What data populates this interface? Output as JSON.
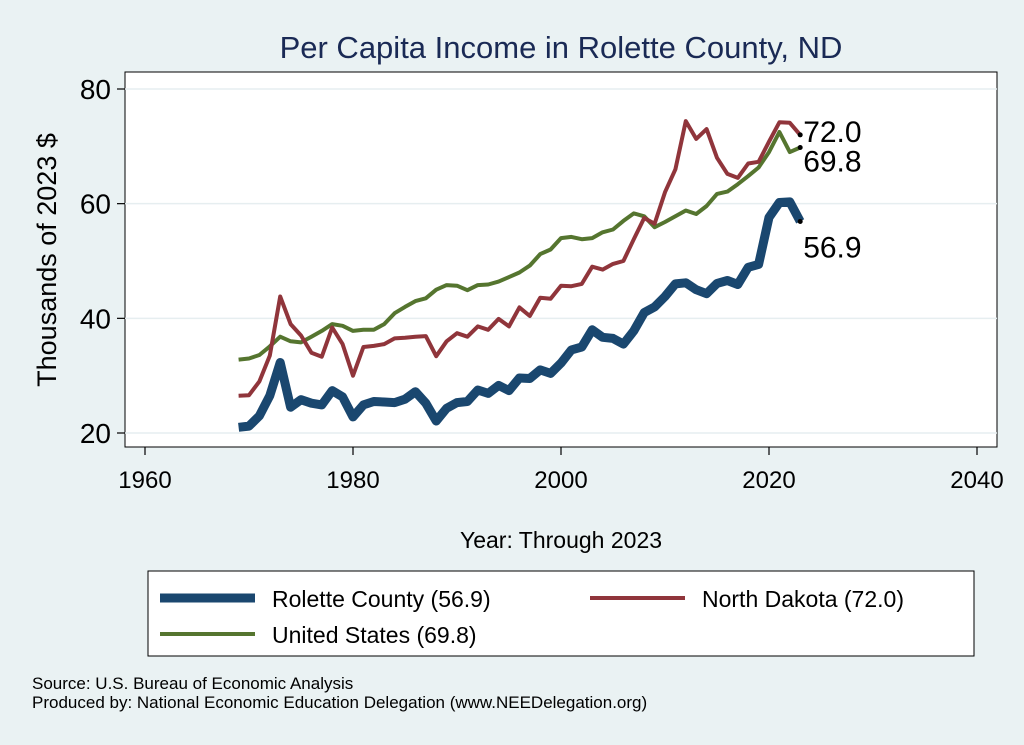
{
  "chart_data": {
    "type": "line",
    "title": "Per Capita Income in Rolette County, ND",
    "xlabel": "Year: Through 2023",
    "ylabel": "Thousands of 2023 $",
    "xlim": [
      1960,
      2040
    ],
    "ylim": [
      20,
      80
    ],
    "xticks": [
      1960,
      1980,
      2000,
      2020,
      2040
    ],
    "yticks": [
      20,
      40,
      60,
      80
    ],
    "grid": true,
    "legend_position": "bottom",
    "x": [
      1969,
      1970,
      1971,
      1972,
      1973,
      1974,
      1975,
      1976,
      1977,
      1978,
      1979,
      1980,
      1981,
      1982,
      1983,
      1984,
      1985,
      1986,
      1987,
      1988,
      1989,
      1990,
      1991,
      1992,
      1993,
      1994,
      1995,
      1996,
      1997,
      1998,
      1999,
      2000,
      2001,
      2002,
      2003,
      2004,
      2005,
      2006,
      2007,
      2008,
      2009,
      2010,
      2011,
      2012,
      2013,
      2014,
      2015,
      2016,
      2017,
      2018,
      2019,
      2020,
      2021,
      2022,
      2023
    ],
    "series": [
      {
        "name": "Rolette County",
        "legend_label": "Rolette County (56.9)",
        "end_label": "56.9",
        "color": "#1a476f",
        "values": [
          21.0,
          21.2,
          23.0,
          26.5,
          32.3,
          24.5,
          25.8,
          25.2,
          24.9,
          27.4,
          26.3,
          22.8,
          24.9,
          25.5,
          25.4,
          25.3,
          25.9,
          27.2,
          25.2,
          22.1,
          24.3,
          25.3,
          25.5,
          27.5,
          26.9,
          28.3,
          27.4,
          29.6,
          29.5,
          31.0,
          30.4,
          32.2,
          34.5,
          35.0,
          38.0,
          36.7,
          36.5,
          35.5,
          37.8,
          41.0,
          42.0,
          43.8,
          46.0,
          46.2,
          45.0,
          44.3,
          46.1,
          46.6,
          45.9,
          48.9,
          49.4,
          57.6,
          60.2,
          60.3,
          56.9
        ]
      },
      {
        "name": "North Dakota",
        "legend_label": "North Dakota (72.0)",
        "end_label": "72.0",
        "color": "#90353b",
        "values": [
          26.5,
          26.6,
          29.0,
          33.5,
          43.8,
          39.0,
          37.0,
          34.0,
          33.3,
          38.4,
          35.5,
          30.0,
          35.0,
          35.2,
          35.5,
          36.5,
          36.6,
          36.8,
          36.9,
          33.4,
          36.0,
          37.4,
          36.8,
          38.6,
          38.0,
          39.9,
          38.6,
          41.9,
          40.4,
          43.6,
          43.4,
          45.7,
          45.6,
          46.0,
          49.0,
          48.5,
          49.5,
          50.0,
          53.8,
          57.5,
          56.5,
          62.0,
          66.0,
          74.4,
          71.3,
          73.0,
          68.0,
          65.2,
          64.5,
          67.0,
          67.3,
          70.8,
          74.2,
          74.1,
          72.0
        ]
      },
      {
        "name": "United States",
        "legend_label": "United States (69.8)",
        "end_label": "69.8",
        "color": "#55752f",
        "values": [
          32.8,
          33.0,
          33.6,
          35.1,
          36.8,
          36.0,
          35.8,
          36.8,
          37.8,
          39.0,
          38.7,
          37.8,
          38.0,
          38.0,
          39.0,
          40.9,
          42.0,
          43.0,
          43.5,
          45.0,
          45.8,
          45.7,
          44.9,
          45.8,
          45.9,
          46.4,
          47.2,
          48.0,
          49.2,
          51.2,
          52.0,
          54.0,
          54.2,
          53.8,
          54.0,
          55.0,
          55.5,
          57.0,
          58.3,
          57.8,
          55.9,
          56.8,
          57.8,
          58.8,
          58.2,
          59.6,
          61.7,
          62.1,
          63.4,
          64.8,
          66.3,
          69.0,
          72.5,
          69.0,
          69.8
        ]
      }
    ],
    "source_note": "Source: U.S. Bureau of Economic Analysis",
    "produced_note": "Produced by: National Economic Education Delegation (www.NEEDelegation.org)"
  }
}
